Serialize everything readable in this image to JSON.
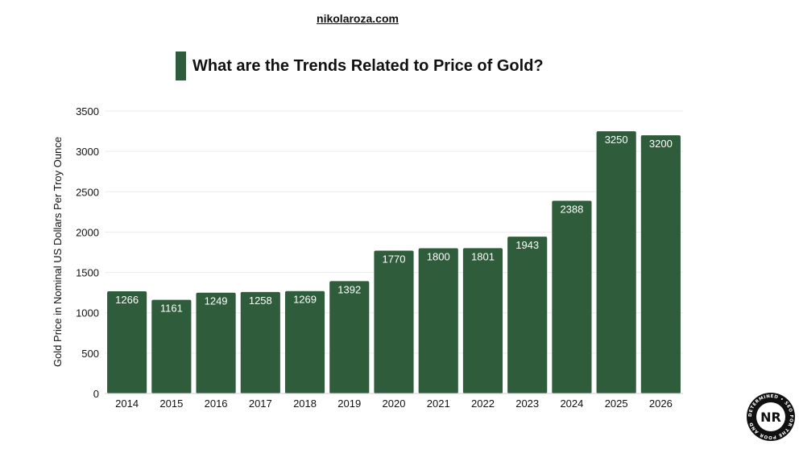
{
  "header": {
    "site": "nikolaroza.com",
    "accent_color": "#2f5d3c"
  },
  "logo": {
    "icon": "nr-seal-icon",
    "initials": "NR",
    "ring_text": "DETERMINED • SEO FOR THE POOR AND"
  },
  "chart_data": {
    "type": "bar",
    "title": "What are the Trends Related to Price of Gold?",
    "xlabel": "",
    "ylabel": "Gold Price in Nominal US Dollars Per Troy Ounce",
    "categories": [
      "2014",
      "2015",
      "2016",
      "2017",
      "2018",
      "2019",
      "2020",
      "2021",
      "2022",
      "2023",
      "2024",
      "2025",
      "2026"
    ],
    "values": [
      1266,
      1161,
      1249,
      1258,
      1269,
      1392,
      1770,
      1800,
      1801,
      1943,
      2388,
      3250,
      3200
    ],
    "ylim": [
      0,
      3500
    ],
    "yticks": [
      0,
      500,
      1000,
      1500,
      2000,
      2500,
      3000,
      3500
    ],
    "grid": true,
    "legend": "none",
    "bar_color": "#2f5d3c",
    "label_color": "#ffffff"
  }
}
